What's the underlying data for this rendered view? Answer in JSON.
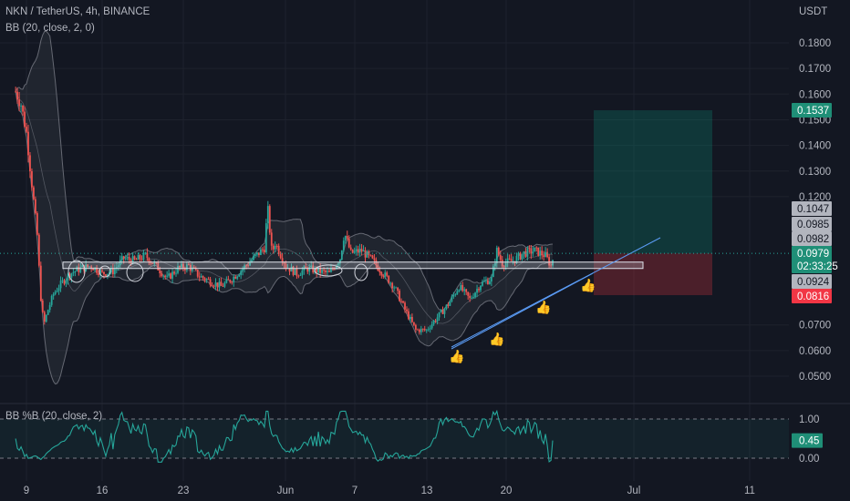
{
  "header": {
    "symbol_line": "NKN / TetherUS, 4h, BINANCE",
    "indicator_line": "BB (20, close, 2, 0)"
  },
  "price_axis": {
    "currency": "USDT",
    "ticks": [
      "0.1800",
      "0.1700",
      "0.1600",
      "0.1500",
      "0.1400",
      "0.1300",
      "0.1200",
      "0.0700",
      "0.0600",
      "0.0500"
    ]
  },
  "price_tags": [
    {
      "value": "0.1537",
      "kind": "target",
      "bg": "#1f8f77",
      "fg": "#ffffff"
    },
    {
      "value": "0.1047",
      "kind": "level",
      "bg": "#b2b5be",
      "fg": "#131722"
    },
    {
      "value": "0.0985",
      "kind": "level",
      "bg": "#b2b5be",
      "fg": "#131722"
    },
    {
      "value": "0.0982",
      "kind": "level",
      "bg": "#b2b5be",
      "fg": "#131722"
    },
    {
      "value": "0.0979",
      "kind": "last",
      "bg": "#1f8f77",
      "fg": "#ffffff"
    },
    {
      "value": "02:33:25",
      "kind": "countdown",
      "bg": "#1f8f77",
      "fg": "#ffffff"
    },
    {
      "value": "0.0924",
      "kind": "level",
      "bg": "#b2b5be",
      "fg": "#131722"
    },
    {
      "value": "0.0816",
      "kind": "stop",
      "bg": "#f23645",
      "fg": "#ffffff"
    }
  ],
  "time_axis": {
    "labels": [
      "9",
      "16",
      "23",
      "Jun",
      "7",
      "13",
      "20",
      "Jul",
      "11"
    ]
  },
  "oscillator": {
    "title": "BB %B (20, close, 2)",
    "ticks": [
      "1.00",
      "0.00"
    ],
    "current_value": "0.45"
  },
  "chart_data": [
    {
      "type": "candlestick",
      "title": "NKN / TetherUS, 4h, BINANCE",
      "ylabel": "USDT",
      "ylim": [
        0.045,
        0.19
      ],
      "x_range_days": [
        8,
        31
      ],
      "colors": {
        "up": "#26a69a",
        "down": "#ef5350",
        "bands": "#868993",
        "box_fill": "#2a2e39"
      },
      "approx_close_path": [
        {
          "day": 8.0,
          "close": 0.161
        },
        {
          "day": 8.5,
          "close": 0.156
        },
        {
          "day": 9.0,
          "close": 0.145
        },
        {
          "day": 9.5,
          "close": 0.125
        },
        {
          "day": 10.0,
          "close": 0.105
        },
        {
          "day": 10.3,
          "close": 0.082
        },
        {
          "day": 10.6,
          "close": 0.07
        },
        {
          "day": 11.0,
          "close": 0.076
        },
        {
          "day": 11.5,
          "close": 0.082
        },
        {
          "day": 12.0,
          "close": 0.085
        },
        {
          "day": 13.0,
          "close": 0.09
        },
        {
          "day": 14.0,
          "close": 0.092
        },
        {
          "day": 15.0,
          "close": 0.093
        },
        {
          "day": 16.0,
          "close": 0.09
        },
        {
          "day": 17.0,
          "close": 0.091
        },
        {
          "day": 18.0,
          "close": 0.096
        },
        {
          "day": 19.0,
          "close": 0.095
        },
        {
          "day": 20.0,
          "close": 0.097
        },
        {
          "day": 21.0,
          "close": 0.093
        },
        {
          "day": 22.0,
          "close": 0.088
        },
        {
          "day": 23.0,
          "close": 0.092
        },
        {
          "day": 24.0,
          "close": 0.093
        },
        {
          "day": 25.0,
          "close": 0.089
        },
        {
          "day": 26.0,
          "close": 0.087
        },
        {
          "day": 27.0,
          "close": 0.085
        },
        {
          "day": 28.0,
          "close": 0.088
        },
        {
          "day": 29.0,
          "close": 0.092
        },
        {
          "day": 30.0,
          "close": 0.096
        },
        {
          "day": 31.0,
          "close": 0.1
        },
        {
          "day": 31.3,
          "close": 0.116
        },
        {
          "day": 31.7,
          "close": 0.098
        },
        {
          "day": 32.0,
          "close": 0.102
        },
        {
          "day": 33.0,
          "close": 0.093
        },
        {
          "day": 34.0,
          "close": 0.09
        },
        {
          "day": 35.0,
          "close": 0.092
        },
        {
          "day": 36.0,
          "close": 0.091
        },
        {
          "day": 37.0,
          "close": 0.09
        },
        {
          "day": 38.0,
          "close": 0.096
        },
        {
          "day": 38.4,
          "close": 0.106
        },
        {
          "day": 39.0,
          "close": 0.098
        },
        {
          "day": 40.0,
          "close": 0.099
        },
        {
          "day": 41.0,
          "close": 0.095
        },
        {
          "day": 42.0,
          "close": 0.09
        },
        {
          "day": 43.0,
          "close": 0.085
        },
        {
          "day": 44.0,
          "close": 0.076
        },
        {
          "day": 45.0,
          "close": 0.068
        },
        {
          "day": 46.0,
          "close": 0.068
        },
        {
          "day": 47.0,
          "close": 0.073
        },
        {
          "day": 48.0,
          "close": 0.078
        },
        {
          "day": 49.0,
          "close": 0.085
        },
        {
          "day": 50.0,
          "close": 0.08
        },
        {
          "day": 51.0,
          "close": 0.086
        },
        {
          "day": 52.0,
          "close": 0.088
        },
        {
          "day": 52.5,
          "close": 0.099
        },
        {
          "day": 53.0,
          "close": 0.094
        },
        {
          "day": 54.0,
          "close": 0.095
        },
        {
          "day": 55.0,
          "close": 0.098
        },
        {
          "day": 56.0,
          "close": 0.099
        },
        {
          "day": 57.0,
          "close": 0.097
        },
        {
          "day": 57.5,
          "close": 0.093
        },
        {
          "day": 57.8,
          "close": 0.0979
        }
      ],
      "levels": {
        "support_box": [
          0.092,
          0.0945
        ],
        "entry": 0.0979,
        "target": 0.1537,
        "stop": 0.0816
      }
    },
    {
      "type": "line",
      "title": "BB %B (20, close, 2)",
      "ylim": [
        -0.1,
        1.2
      ],
      "hlines": [
        1.0,
        0.0
      ],
      "last_value": 0.45
    }
  ]
}
